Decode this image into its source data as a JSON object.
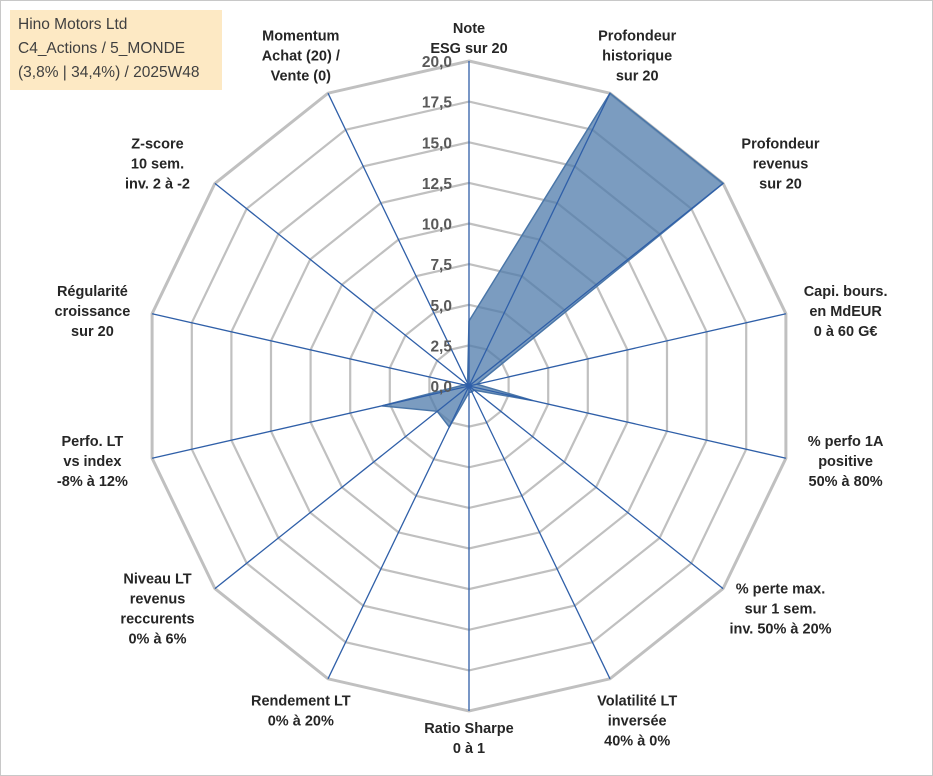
{
  "info": {
    "line1": "Hino Motors Ltd",
    "line2": "C4_Actions / 5_MONDE",
    "line3": "(3,8% | 34,4%) / 2025W48"
  },
  "colors": {
    "fill": "#4f7bab",
    "stroke": "#4a76a8",
    "grid": "#c0c0c0",
    "spoke": "#2f5fa8"
  },
  "chart_data": {
    "type": "radar",
    "rmin": 0,
    "rmax": 20,
    "ticks": [
      "0,0",
      "2,5",
      "5,0",
      "7,5",
      "10,0",
      "12,5",
      "15,0",
      "17,5",
      "20,0"
    ],
    "axes": [
      {
        "label": [
          "Note",
          "ESG sur 20"
        ],
        "value": 4
      },
      {
        "label": [
          "Profondeur",
          "historique",
          "sur 20"
        ],
        "value": 20
      },
      {
        "label": [
          "Profondeur",
          "revenus",
          "sur 20"
        ],
        "value": 20
      },
      {
        "label": [
          "Capi. bours.",
          "en MdEUR",
          "0 à 60 G€"
        ],
        "value": 0
      },
      {
        "label": [
          "% perfo 1A",
          "positive",
          "50% à 80%"
        ],
        "value": 0
      },
      {
        "label": [
          "% perte max.",
          "sur 1 sem.",
          "inv. 50% à 20%"
        ],
        "value": 0
      },
      {
        "label": [
          "Volatilité LT",
          "inversée",
          "40% à 0%"
        ],
        "value": 0
      },
      {
        "label": [
          "Ratio Sharpe",
          "0 à 1"
        ],
        "value": 0
      },
      {
        "label": [
          "Rendement LT",
          "0% à 20%"
        ],
        "value": 0
      },
      {
        "label": [
          "Niveau LT",
          "revenus",
          "reccurents",
          "0% à 6%"
        ],
        "value": 0
      },
      {
        "label": [
          "Perfo. LT",
          "vs index",
          "-8% à 12%"
        ],
        "value": 0
      },
      {
        "label": [
          "Régularité",
          "croissance",
          "sur 20"
        ],
        "value": 0
      },
      {
        "label": [
          "Z-score",
          "10 sem.",
          "inv. 2 à -2"
        ],
        "value": 0
      },
      {
        "label": [
          "Momentum",
          "Achat (20) /",
          "Vente (0)"
        ],
        "value": 0
      }
    ],
    "series": [
      {
        "values": [
          4.0,
          20.0,
          20.0,
          0.5,
          4.0,
          0.4,
          0.4,
          0.4,
          2.8,
          2.5,
          5.5,
          0.3,
          0.2,
          0.2
        ]
      }
    ],
    "grid": true,
    "legend": "none"
  }
}
